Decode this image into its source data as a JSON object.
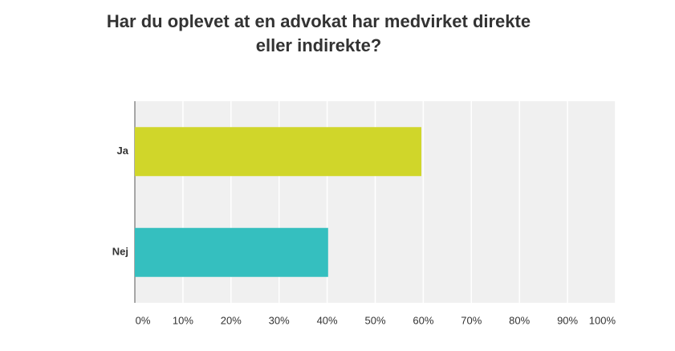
{
  "chart_data": {
    "type": "bar",
    "orientation": "horizontal",
    "title": "Har du oplevet at en advokat har medvirket direkte eller indirekte?",
    "categories": [
      "Ja",
      "Nej"
    ],
    "values": [
      59.6,
      40.2
    ],
    "colors": [
      "#d0d62a",
      "#35bfbf"
    ],
    "xlim": [
      0,
      100
    ],
    "xticks": [
      {
        "value": 0,
        "label": "0%"
      },
      {
        "value": 10,
        "label": "10%"
      },
      {
        "value": 20,
        "label": "20%"
      },
      {
        "value": 30,
        "label": "30%"
      },
      {
        "value": 40,
        "label": "40%"
      },
      {
        "value": 50,
        "label": "50%"
      },
      {
        "value": 60,
        "label": "60%"
      },
      {
        "value": 70,
        "label": "70%"
      },
      {
        "value": 80,
        "label": "80%"
      },
      {
        "value": 90,
        "label": "90%"
      },
      {
        "value": 100,
        "label": "100%"
      }
    ],
    "grid": true
  }
}
